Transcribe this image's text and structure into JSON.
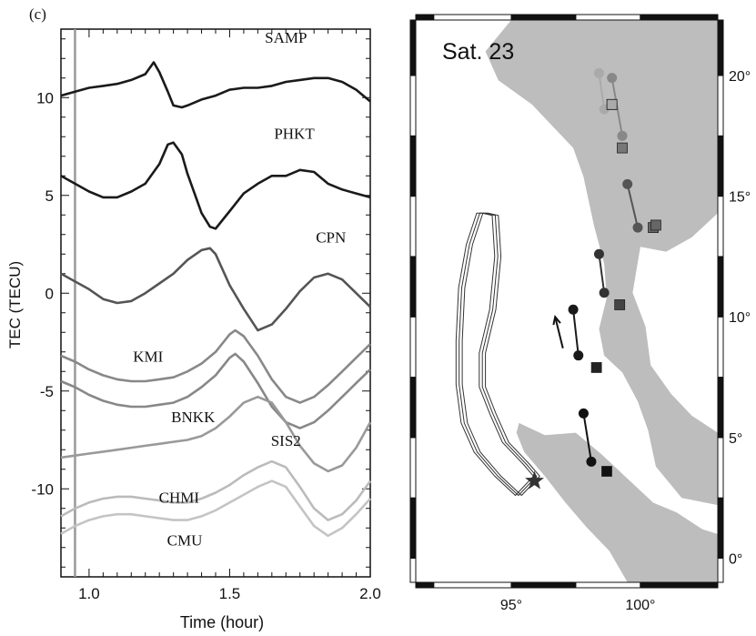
{
  "panel_label": "(c)",
  "chart_data": [
    {
      "type": "line",
      "xlabel": "Time (hour)",
      "ylabel": "TEC (TECU)",
      "xlim": [
        0.9,
        2.0
      ],
      "ylim": [
        -14.5,
        13.5
      ],
      "x_ticks": [
        1.0,
        1.5,
        2.0
      ],
      "x_tick_labels": [
        "1.0",
        "1.5",
        "2.0"
      ],
      "y_ticks": [
        10,
        5,
        0,
        -5,
        -10
      ],
      "y_tick_labels": [
        "10",
        "5",
        "0",
        "-5",
        "-10"
      ],
      "reference_line_x": 0.95,
      "series": [
        {
          "name": "SAMP",
          "color": "#1a1a1a",
          "x": [
            0.9,
            0.95,
            1.0,
            1.05,
            1.1,
            1.15,
            1.2,
            1.23,
            1.25,
            1.28,
            1.3,
            1.33,
            1.35,
            1.4,
            1.45,
            1.5,
            1.55,
            1.6,
            1.65,
            1.7,
            1.75,
            1.8,
            1.85,
            1.9,
            1.95,
            2.0
          ],
          "y": [
            10.1,
            10.3,
            10.5,
            10.6,
            10.7,
            10.9,
            11.2,
            11.8,
            11.3,
            10.3,
            9.6,
            9.5,
            9.6,
            9.9,
            10.1,
            10.4,
            10.5,
            10.5,
            10.6,
            10.8,
            10.9,
            11.0,
            11.0,
            10.8,
            10.4,
            9.8
          ]
        },
        {
          "name": "PHKT",
          "color": "#1a1a1a",
          "x": [
            0.9,
            0.95,
            1.0,
            1.05,
            1.1,
            1.15,
            1.2,
            1.25,
            1.28,
            1.3,
            1.33,
            1.35,
            1.38,
            1.4,
            1.43,
            1.45,
            1.5,
            1.55,
            1.6,
            1.65,
            1.7,
            1.75,
            1.8,
            1.85,
            1.9,
            1.95,
            2.0
          ],
          "y": [
            6.0,
            5.6,
            5.2,
            4.9,
            4.9,
            5.2,
            5.6,
            6.6,
            7.6,
            7.7,
            7.1,
            6.1,
            4.9,
            4.1,
            3.4,
            3.3,
            4.2,
            5.1,
            5.6,
            6.0,
            6.0,
            6.3,
            6.2,
            5.6,
            5.3,
            5.1,
            4.9
          ]
        },
        {
          "name": "CPN",
          "color": "#555555",
          "x": [
            0.9,
            0.95,
            1.0,
            1.05,
            1.1,
            1.15,
            1.2,
            1.25,
            1.3,
            1.35,
            1.4,
            1.43,
            1.45,
            1.5,
            1.55,
            1.6,
            1.65,
            1.7,
            1.75,
            1.8,
            1.85,
            1.9,
            1.95,
            2.0
          ],
          "y": [
            1.0,
            0.6,
            0.2,
            -0.3,
            -0.5,
            -0.4,
            0.0,
            0.5,
            1.0,
            1.7,
            2.2,
            2.3,
            2.0,
            0.4,
            -0.8,
            -1.9,
            -1.6,
            -0.8,
            0.1,
            0.8,
            1.0,
            0.7,
            0.0,
            -0.7
          ]
        },
        {
          "name": "KMI",
          "color": "#888888",
          "x": [
            0.9,
            0.95,
            1.0,
            1.05,
            1.1,
            1.15,
            1.2,
            1.25,
            1.3,
            1.35,
            1.4,
            1.45,
            1.5,
            1.52,
            1.55,
            1.6,
            1.65,
            1.7,
            1.75,
            1.8,
            1.85,
            1.9,
            1.95,
            2.0
          ],
          "y": [
            -3.2,
            -3.5,
            -3.9,
            -4.2,
            -4.4,
            -4.5,
            -4.5,
            -4.4,
            -4.3,
            -4.0,
            -3.6,
            -3.0,
            -2.1,
            -1.9,
            -2.2,
            -3.2,
            -4.4,
            -5.3,
            -5.6,
            -5.3,
            -4.7,
            -4.0,
            -3.3,
            -2.6
          ]
        },
        {
          "name": "BNKK",
          "color": "#888888",
          "x": [
            0.9,
            0.95,
            1.0,
            1.05,
            1.1,
            1.15,
            1.2,
            1.25,
            1.3,
            1.35,
            1.4,
            1.45,
            1.5,
            1.52,
            1.55,
            1.6,
            1.65,
            1.7,
            1.75,
            1.8,
            1.85,
            1.9,
            1.95,
            2.0
          ],
          "y": [
            -4.5,
            -4.8,
            -5.2,
            -5.5,
            -5.7,
            -5.8,
            -5.8,
            -5.7,
            -5.6,
            -5.3,
            -4.8,
            -4.2,
            -3.3,
            -3.1,
            -3.5,
            -4.6,
            -5.8,
            -6.6,
            -6.9,
            -6.6,
            -6.0,
            -5.3,
            -4.6,
            -3.9
          ]
        },
        {
          "name": "SIS2",
          "color": "#999999",
          "x": [
            0.9,
            0.95,
            1.0,
            1.05,
            1.1,
            1.15,
            1.2,
            1.25,
            1.3,
            1.35,
            1.4,
            1.45,
            1.5,
            1.55,
            1.6,
            1.65,
            1.7,
            1.75,
            1.8,
            1.85,
            1.9,
            1.95,
            2.0
          ],
          "y": [
            -8.4,
            -8.3,
            -8.2,
            -8.1,
            -8.0,
            -7.9,
            -7.8,
            -7.7,
            -7.6,
            -7.5,
            -7.3,
            -6.9,
            -6.3,
            -5.6,
            -5.3,
            -5.6,
            -6.6,
            -7.8,
            -8.7,
            -9.1,
            -8.8,
            -7.9,
            -6.6
          ]
        },
        {
          "name": "CHMI",
          "color": "#bbbbbb",
          "x": [
            0.9,
            0.95,
            1.0,
            1.05,
            1.1,
            1.15,
            1.2,
            1.25,
            1.3,
            1.35,
            1.4,
            1.45,
            1.5,
            1.55,
            1.6,
            1.65,
            1.7,
            1.75,
            1.8,
            1.85,
            1.9,
            1.95,
            2.0
          ],
          "y": [
            -11.4,
            -11.0,
            -10.7,
            -10.5,
            -10.4,
            -10.4,
            -10.5,
            -10.6,
            -10.7,
            -10.7,
            -10.5,
            -10.2,
            -9.8,
            -9.3,
            -8.9,
            -8.6,
            -8.9,
            -9.9,
            -11.0,
            -11.6,
            -11.3,
            -10.6,
            -9.6
          ]
        },
        {
          "name": "CMU",
          "color": "#c4c4c4",
          "x": [
            0.9,
            0.95,
            1.0,
            1.05,
            1.1,
            1.15,
            1.2,
            1.25,
            1.3,
            1.35,
            1.4,
            1.45,
            1.5,
            1.55,
            1.6,
            1.65,
            1.7,
            1.75,
            1.8,
            1.85,
            1.9,
            1.95,
            2.0
          ],
          "y": [
            -12.3,
            -11.9,
            -11.6,
            -11.4,
            -11.3,
            -11.3,
            -11.4,
            -11.5,
            -11.6,
            -11.6,
            -11.4,
            -11.1,
            -10.7,
            -10.3,
            -9.9,
            -9.6,
            -9.9,
            -10.9,
            -11.9,
            -12.4,
            -12.0,
            -11.3,
            -10.5
          ]
        }
      ]
    },
    {
      "type": "scatter",
      "title": "Sat. 23",
      "xlim": [
        91.3,
        103.0
      ],
      "ylim": [
        -1.0,
        22.3
      ],
      "x_ticks": [
        95,
        100
      ],
      "x_tick_labels": [
        "95°",
        "100°"
      ],
      "y_ticks": [
        0,
        5,
        10,
        15,
        20
      ],
      "y_tick_labels": [
        "0°",
        "5°",
        "10°",
        "15°",
        "20°"
      ],
      "epicenter": {
        "lon": 95.9,
        "lat": 3.2
      },
      "stations": [
        {
          "name": "SAMP",
          "lon": 98.7,
          "lat": 3.6,
          "color": "#111111"
        },
        {
          "name": "PHKT",
          "lon": 98.3,
          "lat": 7.9,
          "color": "#222222"
        },
        {
          "name": "CPN",
          "lon": 99.2,
          "lat": 10.5,
          "color": "#444444"
        },
        {
          "name": "KMI",
          "lon": 100.5,
          "lat": 13.7,
          "color": "#666666"
        },
        {
          "name": "BNKK",
          "lon": 100.6,
          "lat": 13.8,
          "color": "#666666"
        },
        {
          "name": "SIS2",
          "lon": 99.3,
          "lat": 17.0,
          "color": "#777777"
        },
        {
          "name": "CHMI",
          "lon": 98.9,
          "lat": 18.8,
          "color": "#999999"
        },
        {
          "name": "CMU",
          "lon": 98.9,
          "lat": 18.8,
          "color": "#aaaaaa"
        }
      ],
      "ipp_tracks": [
        {
          "color": "#111111",
          "lon": [
            97.8,
            98.1
          ],
          "lat": [
            6.0,
            4.0
          ]
        },
        {
          "color": "#1a1a1a",
          "lon": [
            97.4,
            97.6
          ],
          "lat": [
            10.3,
            8.4
          ]
        },
        {
          "color": "#333333",
          "lon": [
            98.4,
            98.6
          ],
          "lat": [
            12.6,
            11.0
          ]
        },
        {
          "color": "#555555",
          "lon": [
            99.5,
            99.9
          ],
          "lat": [
            15.5,
            13.7
          ]
        },
        {
          "color": "#888888",
          "lon": [
            98.9,
            99.3
          ],
          "lat": [
            19.9,
            17.5
          ]
        },
        {
          "color": "#aaaaaa",
          "lon": [
            98.4,
            98.6
          ],
          "lat": [
            20.1,
            18.6
          ]
        }
      ],
      "arrow": {
        "lon": [
          97.0,
          96.7
        ],
        "lat": [
          8.7,
          10.0
        ]
      }
    }
  ]
}
